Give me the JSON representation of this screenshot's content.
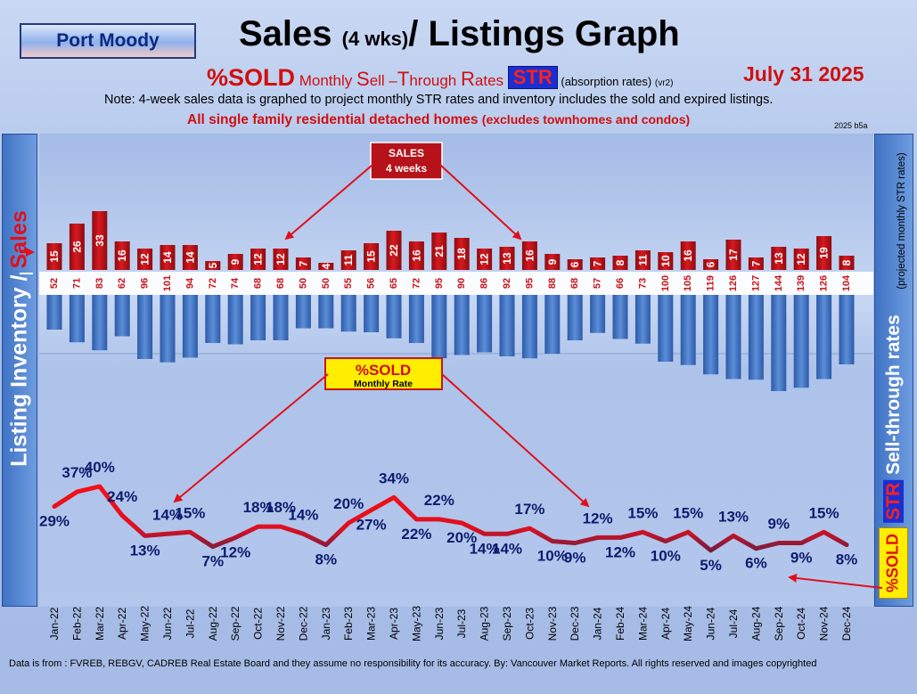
{
  "header": {
    "location": "Port Moody",
    "title_main": "Sales ",
    "title_small": "(4 wks)",
    "title_end": "/ Listings Graph",
    "sub_big": "%SOLD",
    "sub_p1": " Monthly ",
    "sub_c1": "S",
    "sub_p2": "ell –",
    "sub_c2": "T",
    "sub_p3": "hrough ",
    "sub_c3": "R",
    "sub_p4": "ates ",
    "str_badge": "STR",
    "absorption": " (absorption rates) ",
    "version_tag": "(vr2)",
    "date": "July   31  2025",
    "note": "Note: 4-week sales data is graphed to project monthly STR rates and inventory includes the sold and expired listings.",
    "scope": "All single family residential detached homes ",
    "scope_small": "(excludes townhomes and condos)",
    "edition": "2025 b5a"
  },
  "side": {
    "left_label_a": "Listing Inventory / ",
    "left_label_b": "Sales",
    "right_badge": "STR",
    "right_label": " Sell-through rates",
    "right_sublabel": "(projected monthly STR rates)",
    "sold_badge": "%SOLD"
  },
  "callouts": {
    "sales_line1": "SALES",
    "sales_line2": "4  weeks",
    "sold_line1": "%SOLD",
    "sold_line2": "Monthly Rate"
  },
  "footer": "Data is from : FVREB, REBGV, CADREB Real Estate Board and they assume no responsibility for its accuracy. By: Vancouver Market Reports. All rights reserved and  images copyrighted",
  "colors": {
    "sales_bar": "#c8141b",
    "listing_bar": "#3f73c4",
    "line_high": "#ff1010",
    "line_low": "#1a2a5a",
    "label_dark": "#0d1b6e"
  },
  "chart_data": {
    "type": "bar",
    "categories": [
      "Jan-22",
      "Feb-22",
      "Mar-22",
      "Apr-22",
      "May-22",
      "Jun-22",
      "Jul-22",
      "Aug-22",
      "Sep-22",
      "Oct-22",
      "Nov-22",
      "Dec-22",
      "Jan-23",
      "Feb-23",
      "Mar-23",
      "Apr-23",
      "May-23",
      "Jun-23",
      "Jul-23",
      "Aug-23",
      "Sep-23",
      "Oct-23",
      "Nov-23",
      "Dec-23",
      "Jan-24",
      "Feb-24",
      "Mar-24",
      "Apr-24",
      "May-24",
      "Jun-24",
      "Jul-24",
      "Aug-24",
      "Sep-24",
      "Oct-24",
      "Nov-24",
      "Dec-24"
    ],
    "series": [
      {
        "name": "SALES",
        "values": [
          15,
          26,
          33,
          16,
          12,
          14,
          14,
          5,
          9,
          12,
          12,
          7,
          4,
          11,
          15,
          22,
          16,
          21,
          18,
          12,
          13,
          16,
          9,
          6,
          7,
          8,
          11,
          10,
          16,
          6,
          17,
          7,
          13,
          12,
          19,
          8
        ]
      },
      {
        "name": "Listing Inventory",
        "values": [
          52,
          71,
          83,
          62,
          96,
          101,
          94,
          72,
          74,
          68,
          68,
          50,
          50,
          55,
          56,
          65,
          72,
          95,
          90,
          86,
          92,
          95,
          88,
          68,
          57,
          66,
          73,
          100,
          105,
          119,
          126,
          127,
          144,
          139,
          126,
          104
        ]
      },
      {
        "name": "%SOLD",
        "values": [
          29,
          37,
          40,
          24,
          13,
          14,
          15,
          7,
          12,
          18,
          18,
          14,
          8,
          20,
          27,
          34,
          22,
          22,
          20,
          14,
          14,
          17,
          10,
          9,
          12,
          12,
          15,
          10,
          15,
          5,
          13,
          6,
          9,
          9,
          15,
          8
        ]
      }
    ]
  }
}
